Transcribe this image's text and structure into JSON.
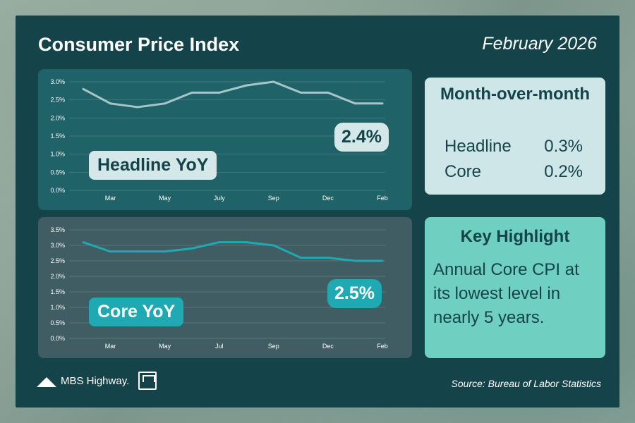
{
  "header": {
    "title": "Consumer Price Index",
    "date": "February 2026"
  },
  "chart_data": [
    {
      "type": "line",
      "tag": "Headline YoY",
      "callout": "2.4%",
      "ylim": [
        0,
        3.0
      ],
      "yticks": [
        "0.0%",
        "0.5%",
        "1.0%",
        "1.5%",
        "2.0%",
        "2.5%",
        "3.0%"
      ],
      "x_tick_labels": [
        "Mar",
        "May",
        "July",
        "Sep",
        "Dec",
        "Feb"
      ],
      "x": [
        0,
        1,
        2,
        3,
        4,
        5,
        6,
        7,
        8,
        9,
        10,
        11
      ],
      "values": [
        2.8,
        2.4,
        2.3,
        2.4,
        2.7,
        2.7,
        2.9,
        3.0,
        2.7,
        2.7,
        2.4,
        2.4
      ],
      "color": "#a7c6cb"
    },
    {
      "type": "line",
      "tag": "Core YoY",
      "callout": "2.5%",
      "ylim": [
        0,
        3.5
      ],
      "yticks": [
        "0.0%",
        "0.5%",
        "1.0%",
        "1.5%",
        "2.0%",
        "2.5%",
        "3.0%",
        "3.5%"
      ],
      "x_tick_labels": [
        "Mar",
        "May",
        "Jul",
        "Sep",
        "Dec",
        "Feb"
      ],
      "x": [
        0,
        1,
        2,
        3,
        4,
        5,
        6,
        7,
        8,
        9,
        10,
        11
      ],
      "values": [
        3.1,
        2.8,
        2.8,
        2.8,
        2.9,
        3.1,
        3.1,
        3.0,
        2.6,
        2.6,
        2.5,
        2.5
      ],
      "color": "#1fa9b2"
    }
  ],
  "mom": {
    "heading": "Month-over-month",
    "headline_label": "Headline",
    "headline_value": "0.3%",
    "core_label": "Core",
    "core_value": "0.2%"
  },
  "highlight": {
    "heading": "Key Highlight",
    "text": "Annual Core CPI at its lowest level in nearly 5 years."
  },
  "footer": {
    "brand": "MBS Highway.",
    "source": "Source: Bureau of Labor Statistics"
  }
}
